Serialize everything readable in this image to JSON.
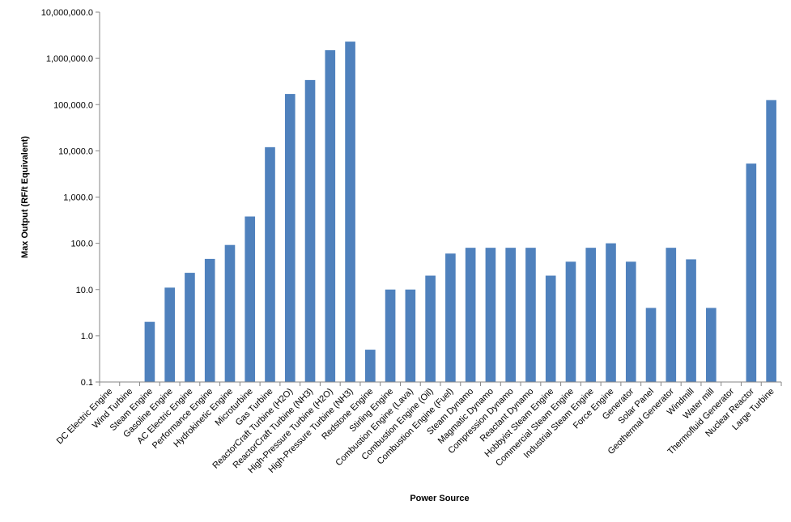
{
  "chart_data": {
    "type": "bar",
    "title": "",
    "xlabel": "Power Source",
    "ylabel": "Max Output (RF/t Equivalent)",
    "scale": "log",
    "ylim": [
      0.1,
      10000000
    ],
    "grid": false,
    "legend": "none",
    "colors": {
      "bar": "#4F81BD",
      "axis": "#868686"
    },
    "y_ticks": [
      {
        "value": 0.1,
        "label": "0.1"
      },
      {
        "value": 1,
        "label": "1.0"
      },
      {
        "value": 10,
        "label": "10.0"
      },
      {
        "value": 100,
        "label": "100.0"
      },
      {
        "value": 1000,
        "label": "1,000.0"
      },
      {
        "value": 10000,
        "label": "10,000.0"
      },
      {
        "value": 100000,
        "label": "100,000.0"
      },
      {
        "value": 1000000,
        "label": "1,000,000.0"
      },
      {
        "value": 10000000,
        "label": "10,000,000.0"
      }
    ],
    "categories": [
      "DC Electric Engine",
      "Wind Turbine",
      "Steam Engine",
      "Gasoline Engine",
      "AC Electric Engine",
      "Performance Engine",
      "Hydrokinetic Engine",
      "Microturbine",
      "Gas Turbine",
      "ReactorCraft Turbine (H2O)",
      "ReactorCraft Turbine (NH3)",
      "High-Pressure Turbine (H2O)",
      "High-Pressure Turbine (NH3)",
      "Redstone Engine",
      "Stirling Engine",
      "Combustion Engine (Lava)",
      "Combustion Engine (Oil)",
      "Combustion Engine (Fuel)",
      "Steam Dynamo",
      "Magmatic Dynamo",
      "Compression Dynamo",
      "Reactant Dynamo",
      "Hobbyist Steam Engine",
      "Commercial Steam Engine",
      "Industrial Steam Engine",
      "Force Engine",
      "Generator",
      "Solar Panel",
      "Geothermal Generator",
      "Windmill",
      "Water mill",
      "Thermofluid Generator",
      "Nuclear Reactor",
      "Large Turbine"
    ],
    "values": [
      null,
      null,
      2,
      11,
      23,
      46,
      92,
      380,
      12000,
      170000,
      340000,
      1500000,
      2300000,
      0.5,
      10,
      10,
      20,
      60,
      80,
      80,
      80,
      80,
      20,
      40,
      80,
      100,
      40,
      4,
      80,
      45,
      4,
      null,
      5300,
      125000
    ]
  }
}
